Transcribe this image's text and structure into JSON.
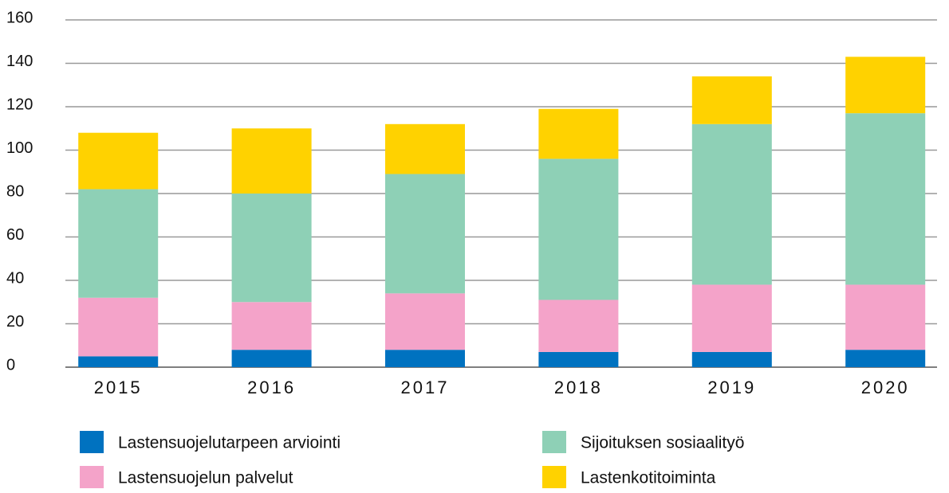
{
  "chart_data": {
    "type": "stacked_bar",
    "categories": [
      "2015",
      "2016",
      "2017",
      "2018",
      "2019",
      "2020"
    ],
    "series": [
      {
        "name": "Lastensuojelutarpeen arviointi",
        "color": "#0072c0",
        "values": [
          5,
          8,
          8,
          7,
          7,
          8
        ]
      },
      {
        "name": "Lastensuojelun palvelut",
        "color": "#f4a3c9",
        "values": [
          27,
          22,
          26,
          24,
          31,
          30
        ]
      },
      {
        "name": "Sijoituksen sosiaalityö",
        "color": "#8ed0b6",
        "values": [
          50,
          50,
          55,
          65,
          74,
          79
        ]
      },
      {
        "name": "Lastenkotitoiminta",
        "color": "#ffd200",
        "values": [
          26,
          30,
          23,
          23,
          22,
          26
        ]
      }
    ],
    "ylim": [
      0,
      160
    ],
    "yticks": [
      0,
      20,
      40,
      60,
      80,
      100,
      120,
      140,
      160
    ],
    "grid": true,
    "legend": "bottom"
  }
}
